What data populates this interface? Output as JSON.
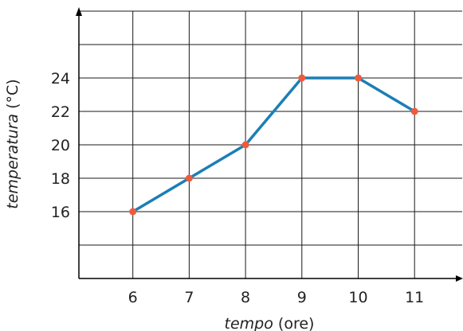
{
  "chart_data": {
    "type": "line",
    "title": "",
    "xlabel_italic": "tempo",
    "xlabel_rest": " (ore)",
    "ylabel_italic": "temperatura",
    "ylabel_rest": " (°C)",
    "x": [
      6,
      7,
      8,
      9,
      10,
      11
    ],
    "xtick_labels": [
      "6",
      "7",
      "8",
      "9",
      "10",
      "11"
    ],
    "ytick_labels": [
      "16",
      "18",
      "20",
      "22",
      "24"
    ],
    "yticks": [
      16,
      18,
      20,
      22,
      24
    ],
    "series": [
      {
        "values": [
          16,
          18,
          20,
          24,
          24,
          22
        ]
      }
    ],
    "xlim": [
      5,
      12
    ],
    "ylim": [
      12,
      28
    ],
    "grid": true,
    "colors": {
      "line": "#1a7fb5",
      "marker": "#f05a3c",
      "grid": "#1a1a1a",
      "axis": "#000000"
    }
  }
}
